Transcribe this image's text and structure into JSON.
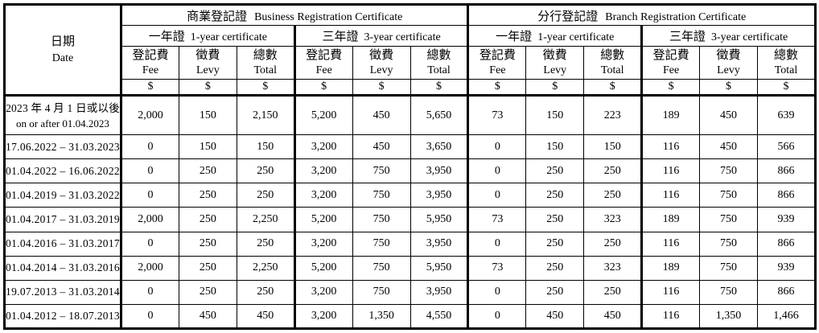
{
  "table": {
    "date_header": {
      "zh": "日期",
      "en": "Date"
    },
    "sections": [
      {
        "zh": "商業登記證",
        "en": "Business Registration Certificate"
      },
      {
        "zh": "分行登記證",
        "en": "Branch Registration Certificate"
      }
    ],
    "cert_types": [
      {
        "zh": "一年證",
        "en": "1-year certificate"
      },
      {
        "zh": "三年證",
        "en": "3-year certificate"
      }
    ],
    "fee_cols": [
      {
        "zh": "登記費",
        "en": "Fee"
      },
      {
        "zh": "徵費",
        "en": "Levy"
      },
      {
        "zh": "總數",
        "en": "Total"
      }
    ],
    "currency_symbol": "$",
    "rows": [
      {
        "label": [
          "2023 年 4 月 1 日或以後",
          "on or after 01.04.2023"
        ],
        "values": [
          "2,000",
          "150",
          "2,150",
          "5,200",
          "450",
          "5,650",
          "73",
          "150",
          "223",
          "189",
          "450",
          "639"
        ]
      },
      {
        "label": [
          "17.06.2022 – 31.03.2023"
        ],
        "values": [
          "0",
          "150",
          "150",
          "3,200",
          "450",
          "3,650",
          "0",
          "150",
          "150",
          "116",
          "450",
          "566"
        ]
      },
      {
        "label": [
          "01.04.2022 – 16.06.2022"
        ],
        "values": [
          "0",
          "250",
          "250",
          "3,200",
          "750",
          "3,950",
          "0",
          "250",
          "250",
          "116",
          "750",
          "866"
        ]
      },
      {
        "label": [
          "01.04.2019 – 31.03.2022"
        ],
        "values": [
          "0",
          "250",
          "250",
          "3,200",
          "750",
          "3,950",
          "0",
          "250",
          "250",
          "116",
          "750",
          "866"
        ]
      },
      {
        "label": [
          "01.04.2017 – 31.03.2019"
        ],
        "values": [
          "2,000",
          "250",
          "2,250",
          "5,200",
          "750",
          "5,950",
          "73",
          "250",
          "323",
          "189",
          "750",
          "939"
        ]
      },
      {
        "label": [
          "01.04.2016 – 31.03.2017"
        ],
        "values": [
          "0",
          "250",
          "250",
          "3,200",
          "750",
          "3,950",
          "0",
          "250",
          "250",
          "116",
          "750",
          "866"
        ]
      },
      {
        "label": [
          "01.04.2014 – 31.03.2016"
        ],
        "values": [
          "2,000",
          "250",
          "2,250",
          "5,200",
          "750",
          "5,950",
          "73",
          "250",
          "323",
          "189",
          "750",
          "939"
        ]
      },
      {
        "label": [
          "19.07.2013 – 31.03.2014"
        ],
        "values": [
          "0",
          "250",
          "250",
          "3,200",
          "750",
          "3,950",
          "0",
          "250",
          "250",
          "116",
          "750",
          "866"
        ]
      },
      {
        "label": [
          "01.04.2012 – 18.07.2013"
        ],
        "values": [
          "0",
          "450",
          "450",
          "3,200",
          "1,350",
          "4,550",
          "0",
          "450",
          "450",
          "116",
          "1,350",
          "1,466"
        ]
      }
    ]
  }
}
